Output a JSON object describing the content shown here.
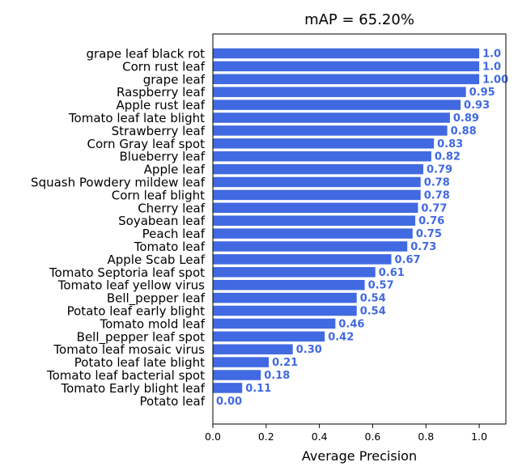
{
  "chart_data": {
    "type": "bar",
    "orientation": "horizontal",
    "title": "mAP = 65.20%",
    "xlabel": "Average Precision",
    "ylabel": "",
    "xlim": [
      0,
      1.1
    ],
    "xticks": [
      "0.0",
      "0.2",
      "0.4",
      "0.6",
      "0.8",
      "1.0"
    ],
    "grid": false,
    "bar_color": "#4169e1",
    "label_color": "#4169e1",
    "categories": [
      "grape leaf black rot",
      "Corn rust leaf",
      "grape leaf",
      "Raspberry leaf",
      "Apple rust leaf",
      "Tomato leaf late blight",
      "Strawberry leaf",
      "Corn Gray leaf spot",
      "Blueberry leaf",
      "Apple leaf",
      "Squash Powdery mildew leaf",
      "Corn leaf blight",
      "Cherry leaf",
      "Soyabean leaf",
      "Peach leaf",
      "Tomato leaf",
      "Apple Scab Leaf",
      "Tomato Septoria leaf spot",
      "Tomato leaf yellow virus",
      "Bell_pepper leaf",
      "Potato leaf early blight",
      "Tomato mold leaf",
      "Bell_pepper leaf spot",
      "Tomato leaf mosaic virus",
      "Potato leaf late blight",
      "Tomato leaf bacterial spot",
      "Tomato Early blight leaf",
      "Potato leaf"
    ],
    "values": [
      1.0,
      1.0,
      1.0,
      0.95,
      0.93,
      0.89,
      0.88,
      0.83,
      0.82,
      0.79,
      0.78,
      0.78,
      0.77,
      0.76,
      0.75,
      0.73,
      0.67,
      0.61,
      0.57,
      0.54,
      0.54,
      0.46,
      0.42,
      0.3,
      0.21,
      0.18,
      0.11,
      0.0
    ],
    "value_labels": [
      "1.0",
      "1.0",
      "1.00",
      "0.95",
      "0.93",
      "0.89",
      "0.88",
      "0.83",
      "0.82",
      "0.79",
      "0.78",
      "0.78",
      "0.77",
      "0.76",
      "0.75",
      "0.73",
      "0.67",
      "0.61",
      "0.57",
      "0.54",
      "0.54",
      "0.46",
      "0.42",
      "0.30",
      "0.21",
      "0.18",
      "0.11",
      "0.00"
    ]
  }
}
